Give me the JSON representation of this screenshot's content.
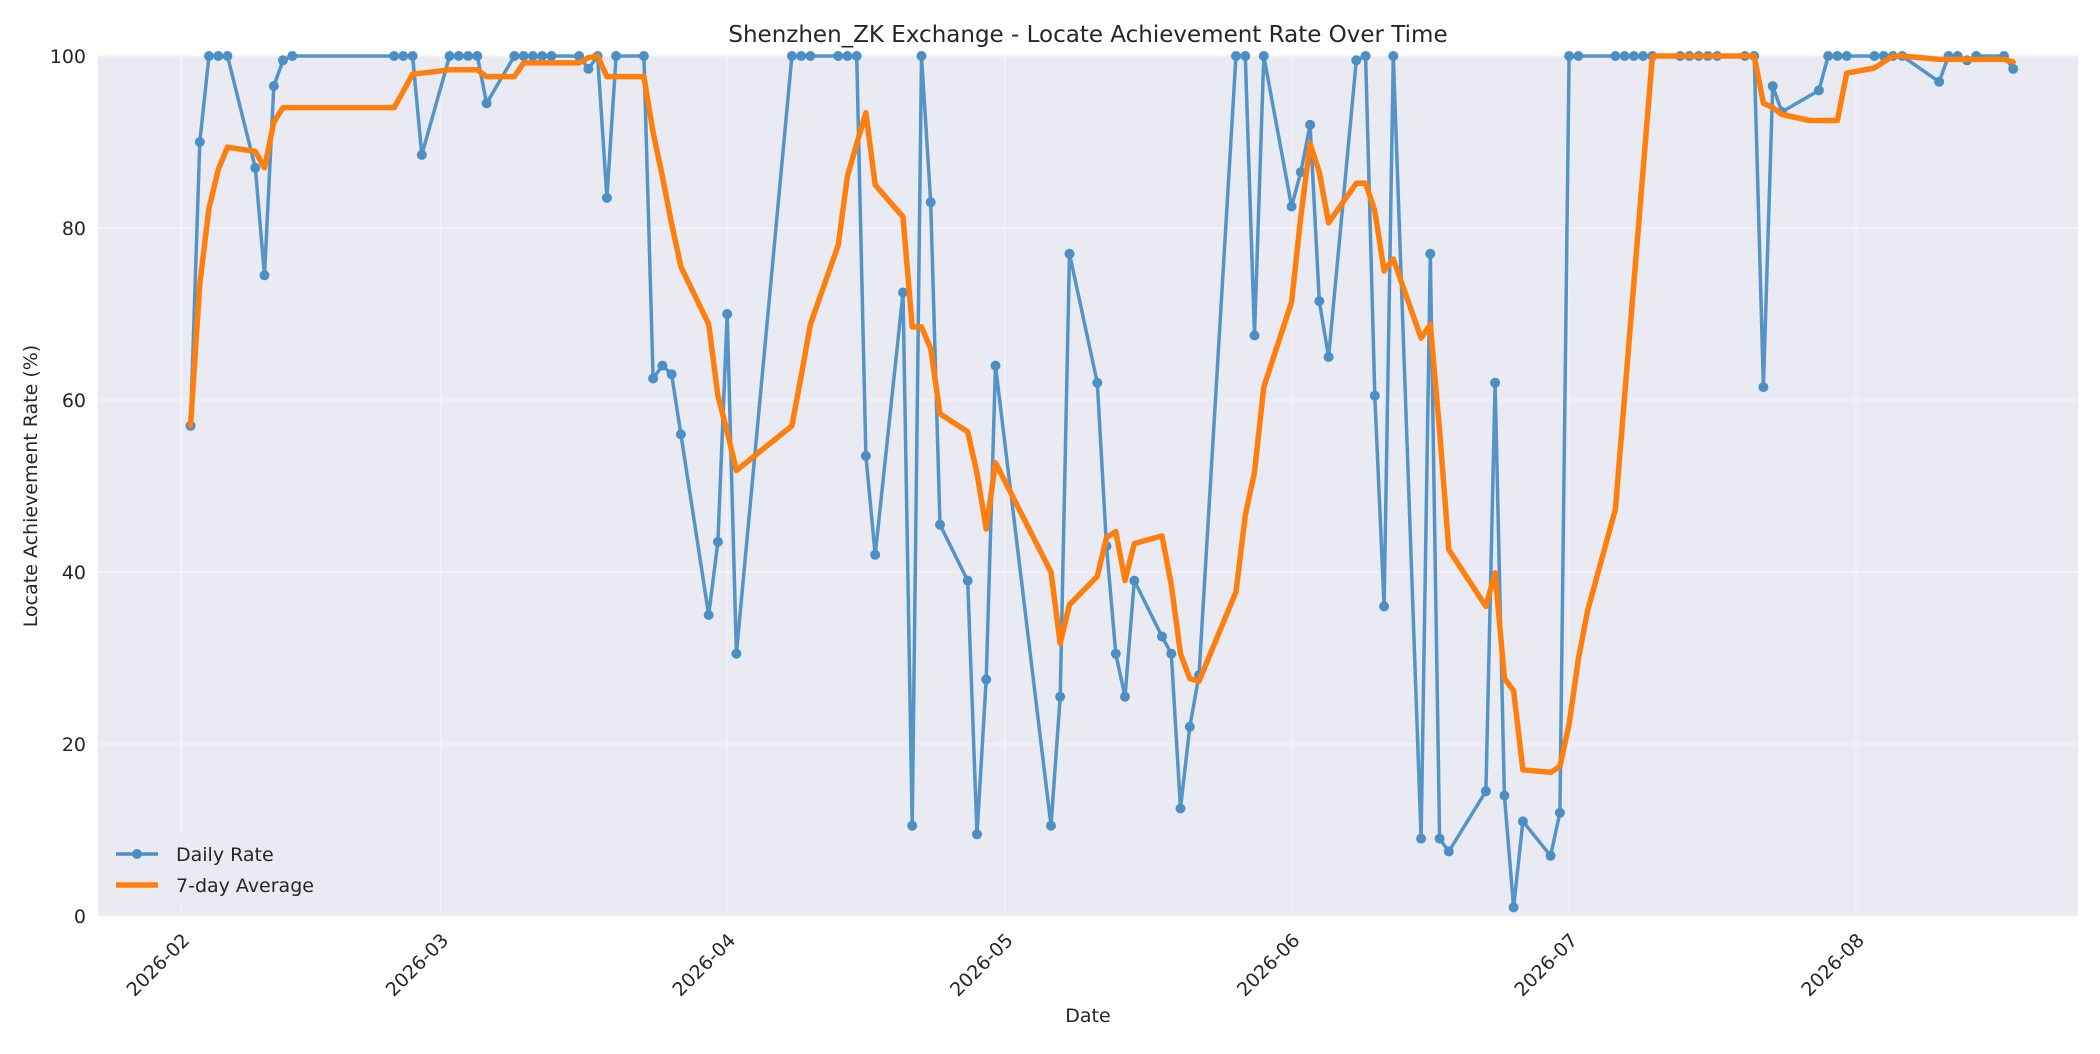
{
  "chart_data": {
    "type": "line",
    "title": "Shenzhen_ZK Exchange - Locate Achievement Rate Over Time",
    "xlabel": "Date",
    "ylabel": "Locate Achievement Rate (%)",
    "xlim": [
      "2026-01-23",
      "2026-08-25"
    ],
    "ylim": [
      0,
      100
    ],
    "x_ticks": [
      "2026-02-01",
      "2026-03-01",
      "2026-04-01",
      "2026-05-01",
      "2026-06-01",
      "2026-07-01",
      "2026-08-01"
    ],
    "x_tick_labels": [
      "2026-02",
      "2026-03",
      "2026-04",
      "2026-05",
      "2026-06",
      "2026-07",
      "2026-08"
    ],
    "y_ticks": [
      0,
      20,
      40,
      60,
      80,
      100
    ],
    "y_tick_labels": [
      "0",
      "20",
      "40",
      "60",
      "80",
      "100"
    ],
    "grid": true,
    "legend_position": "lower-left",
    "colors": {
      "plot_background": "#eaeaf2",
      "grid": "#f4f4f8",
      "daily": "#4c8fc4",
      "average": "#ff7f0e",
      "text": "#262626"
    },
    "series": [
      {
        "name": "Daily Rate",
        "marker": "circle",
        "points": [
          [
            "2026-02-02",
            57
          ],
          [
            "2026-02-03",
            90
          ],
          [
            "2026-02-04",
            100
          ],
          [
            "2026-02-05",
            100
          ],
          [
            "2026-02-06",
            100
          ],
          [
            "2026-02-09",
            87
          ],
          [
            "2026-02-10",
            74.5
          ],
          [
            "2026-02-11",
            96.5
          ],
          [
            "2026-02-12",
            99.5
          ],
          [
            "2026-02-13",
            100
          ],
          [
            "2026-02-24",
            100
          ],
          [
            "2026-02-25",
            100
          ],
          [
            "2026-02-26",
            100
          ],
          [
            "2026-02-27",
            88.5
          ],
          [
            "2026-03-02",
            100
          ],
          [
            "2026-03-03",
            100
          ],
          [
            "2026-03-04",
            100
          ],
          [
            "2026-03-05",
            100
          ],
          [
            "2026-03-06",
            94.5
          ],
          [
            "2026-03-09",
            100
          ],
          [
            "2026-03-10",
            100
          ],
          [
            "2026-03-11",
            100
          ],
          [
            "2026-03-12",
            100
          ],
          [
            "2026-03-13",
            100
          ],
          [
            "2026-03-16",
            100
          ],
          [
            "2026-03-17",
            98.5
          ],
          [
            "2026-03-18",
            100
          ],
          [
            "2026-03-19",
            83.5
          ],
          [
            "2026-03-20",
            100
          ],
          [
            "2026-03-23",
            100
          ],
          [
            "2026-03-24",
            62.5
          ],
          [
            "2026-03-25",
            64
          ],
          [
            "2026-03-26",
            63
          ],
          [
            "2026-03-27",
            56
          ],
          [
            "2026-03-30",
            35
          ],
          [
            "2026-03-31",
            43.5
          ],
          [
            "2026-04-01",
            70
          ],
          [
            "2026-04-02",
            30.5
          ],
          [
            "2026-04-08",
            100
          ],
          [
            "2026-04-09",
            100
          ],
          [
            "2026-04-10",
            100
          ],
          [
            "2026-04-13",
            100
          ],
          [
            "2026-04-14",
            100
          ],
          [
            "2026-04-15",
            100
          ],
          [
            "2026-04-16",
            53.5
          ],
          [
            "2026-04-17",
            42
          ],
          [
            "2026-04-20",
            72.5
          ],
          [
            "2026-04-21",
            10.5
          ],
          [
            "2026-04-22",
            100
          ],
          [
            "2026-04-23",
            83
          ],
          [
            "2026-04-24",
            45.5
          ],
          [
            "2026-04-27",
            39
          ],
          [
            "2026-04-28",
            9.5
          ],
          [
            "2026-04-29",
            27.5
          ],
          [
            "2026-04-30",
            64
          ],
          [
            "2026-05-06",
            10.5
          ],
          [
            "2026-05-07",
            25.5
          ],
          [
            "2026-05-08",
            77
          ],
          [
            "2026-05-11",
            62
          ],
          [
            "2026-05-12",
            43
          ],
          [
            "2026-05-13",
            30.5
          ],
          [
            "2026-05-14",
            25.5
          ],
          [
            "2026-05-15",
            39
          ],
          [
            "2026-05-18",
            32.5
          ],
          [
            "2026-05-19",
            30.5
          ],
          [
            "2026-05-20",
            12.5
          ],
          [
            "2026-05-21",
            22
          ],
          [
            "2026-05-22",
            28
          ],
          [
            "2026-05-26",
            100
          ],
          [
            "2026-05-27",
            100
          ],
          [
            "2026-05-28",
            67.5
          ],
          [
            "2026-05-29",
            100
          ],
          [
            "2026-06-01",
            82.5
          ],
          [
            "2026-06-02",
            86.5
          ],
          [
            "2026-06-03",
            92
          ],
          [
            "2026-06-04",
            71.5
          ],
          [
            "2026-06-05",
            65
          ],
          [
            "2026-06-08",
            99.5
          ],
          [
            "2026-06-09",
            100
          ],
          [
            "2026-06-10",
            60.5
          ],
          [
            "2026-06-11",
            36
          ],
          [
            "2026-06-12",
            100
          ],
          [
            "2026-06-15",
            9
          ],
          [
            "2026-06-16",
            77
          ],
          [
            "2026-06-17",
            9
          ],
          [
            "2026-06-18",
            7.5
          ],
          [
            "2026-06-22",
            14.5
          ],
          [
            "2026-06-23",
            62
          ],
          [
            "2026-06-24",
            14
          ],
          [
            "2026-06-25",
            1
          ],
          [
            "2026-06-26",
            11
          ],
          [
            "2026-06-29",
            7
          ],
          [
            "2026-06-30",
            12
          ],
          [
            "2026-07-01",
            100
          ],
          [
            "2026-07-02",
            100
          ],
          [
            "2026-07-06",
            100
          ],
          [
            "2026-07-07",
            100
          ],
          [
            "2026-07-08",
            100
          ],
          [
            "2026-07-09",
            100
          ],
          [
            "2026-07-10",
            100
          ],
          [
            "2026-07-13",
            100
          ],
          [
            "2026-07-14",
            100
          ],
          [
            "2026-07-15",
            100
          ],
          [
            "2026-07-16",
            100
          ],
          [
            "2026-07-17",
            100
          ],
          [
            "2026-07-20",
            100
          ],
          [
            "2026-07-21",
            100
          ],
          [
            "2026-07-22",
            61.5
          ],
          [
            "2026-07-23",
            96.5
          ],
          [
            "2026-07-24",
            93.5
          ],
          [
            "2026-07-28",
            96
          ],
          [
            "2026-07-29",
            100
          ],
          [
            "2026-07-30",
            100
          ],
          [
            "2026-07-31",
            100
          ],
          [
            "2026-08-03",
            100
          ],
          [
            "2026-08-04",
            100
          ],
          [
            "2026-08-05",
            100
          ],
          [
            "2026-08-06",
            100
          ],
          [
            "2026-08-10",
            97
          ],
          [
            "2026-08-11",
            100
          ],
          [
            "2026-08-12",
            100
          ],
          [
            "2026-08-13",
            99.5
          ],
          [
            "2026-08-14",
            100
          ],
          [
            "2026-08-17",
            100
          ],
          [
            "2026-08-18",
            98.5
          ]
        ]
      },
      {
        "name": "7-day Average",
        "marker": "none",
        "points": [
          [
            "2026-02-02",
            57
          ],
          [
            "2026-02-03",
            73.5
          ],
          [
            "2026-02-04",
            82.3
          ],
          [
            "2026-02-05",
            86.8
          ],
          [
            "2026-02-06",
            89.4
          ],
          [
            "2026-02-09",
            88.9
          ],
          [
            "2026-02-10",
            87
          ],
          [
            "2026-02-11",
            92.3
          ],
          [
            "2026-02-12",
            94
          ],
          [
            "2026-02-13",
            94
          ],
          [
            "2026-02-24",
            94
          ],
          [
            "2026-02-25",
            95.9
          ],
          [
            "2026-02-26",
            97.9
          ],
          [
            "2026-02-27",
            98
          ],
          [
            "2026-03-02",
            98.4
          ],
          [
            "2026-03-03",
            98.4
          ],
          [
            "2026-03-04",
            98.4
          ],
          [
            "2026-03-05",
            98.4
          ],
          [
            "2026-03-06",
            97.6
          ],
          [
            "2026-03-09",
            97.6
          ],
          [
            "2026-03-10",
            99.2
          ],
          [
            "2026-03-11",
            99.2
          ],
          [
            "2026-03-12",
            99.2
          ],
          [
            "2026-03-13",
            99.2
          ],
          [
            "2026-03-16",
            99.2
          ],
          [
            "2026-03-17",
            99.8
          ],
          [
            "2026-03-18",
            100
          ],
          [
            "2026-03-19",
            97.6
          ],
          [
            "2026-03-20",
            97.6
          ],
          [
            "2026-03-23",
            97.6
          ],
          [
            "2026-03-24",
            91.1
          ],
          [
            "2026-03-25",
            86
          ],
          [
            "2026-03-26",
            80.5
          ],
          [
            "2026-03-27",
            75.5
          ],
          [
            "2026-03-30",
            68.8
          ],
          [
            "2026-03-31",
            60.5
          ],
          [
            "2026-04-01",
            56.3
          ],
          [
            "2026-04-02",
            51.8
          ],
          [
            "2026-04-08",
            57
          ],
          [
            "2026-04-09",
            62.8
          ],
          [
            "2026-04-10",
            68.8
          ],
          [
            "2026-04-13",
            78
          ],
          [
            "2026-04-14",
            86
          ],
          [
            "2026-04-15",
            89.8
          ],
          [
            "2026-04-16",
            93.4
          ],
          [
            "2026-04-17",
            85
          ],
          [
            "2026-04-20",
            81.3
          ],
          [
            "2026-04-21",
            68.5
          ],
          [
            "2026-04-22",
            68.5
          ],
          [
            "2026-04-23",
            66
          ],
          [
            "2026-04-24",
            58.4
          ],
          [
            "2026-04-27",
            56.3
          ],
          [
            "2026-04-28",
            51.5
          ],
          [
            "2026-04-29",
            45
          ],
          [
            "2026-04-30",
            52.7
          ],
          [
            "2026-05-06",
            40
          ],
          [
            "2026-05-07",
            31.7
          ],
          [
            "2026-05-08",
            36.2
          ],
          [
            "2026-05-11",
            39.5
          ],
          [
            "2026-05-12",
            44
          ],
          [
            "2026-05-13",
            44.7
          ],
          [
            "2026-05-14",
            39
          ],
          [
            "2026-05-15",
            43.3
          ],
          [
            "2026-05-18",
            44.2
          ],
          [
            "2026-05-19",
            38.5
          ],
          [
            "2026-05-20",
            30.5
          ],
          [
            "2026-05-21",
            27.6
          ],
          [
            "2026-05-22",
            27.3
          ],
          [
            "2026-05-26",
            37.7
          ],
          [
            "2026-05-27",
            46.6
          ],
          [
            "2026-05-28",
            51.6
          ],
          [
            "2026-05-29",
            61.5
          ],
          [
            "2026-06-01",
            71.4
          ],
          [
            "2026-06-02",
            81.3
          ],
          [
            "2026-06-03",
            89.8
          ],
          [
            "2026-06-04",
            86.5
          ],
          [
            "2026-06-05",
            80.6
          ],
          [
            "2026-06-08",
            85.2
          ],
          [
            "2026-06-09",
            85.2
          ],
          [
            "2026-06-10",
            82
          ],
          [
            "2026-06-11",
            75
          ],
          [
            "2026-06-12",
            76.4
          ],
          [
            "2026-06-15",
            67.2
          ],
          [
            "2026-06-16",
            68.8
          ],
          [
            "2026-06-17",
            56.4
          ],
          [
            "2026-06-18",
            42.6
          ],
          [
            "2026-06-22",
            36
          ],
          [
            "2026-06-23",
            39.9
          ],
          [
            "2026-06-24",
            27.6
          ],
          [
            "2026-06-25",
            26.2
          ],
          [
            "2026-06-26",
            17
          ],
          [
            "2026-06-29",
            16.7
          ],
          [
            "2026-06-30",
            17.4
          ],
          [
            "2026-07-01",
            22.3
          ],
          [
            "2026-07-02",
            29.9
          ],
          [
            "2026-07-03",
            35.5
          ],
          [
            "2026-07-06",
            47.3
          ],
          [
            "2026-07-10",
            100
          ],
          [
            "2026-07-13",
            100
          ],
          [
            "2026-07-14",
            100
          ],
          [
            "2026-07-15",
            100
          ],
          [
            "2026-07-16",
            100
          ],
          [
            "2026-07-17",
            100
          ],
          [
            "2026-07-20",
            100
          ],
          [
            "2026-07-21",
            100
          ],
          [
            "2026-07-22",
            94.5
          ],
          [
            "2026-07-23",
            94
          ],
          [
            "2026-07-24",
            93.2
          ],
          [
            "2026-07-27",
            92.5
          ],
          [
            "2026-07-30",
            92.5
          ],
          [
            "2026-07-31",
            98
          ],
          [
            "2026-08-03",
            98.6
          ],
          [
            "2026-08-05",
            100
          ],
          [
            "2026-08-06",
            100
          ],
          [
            "2026-08-07",
            99.9
          ],
          [
            "2026-08-10",
            99.6
          ],
          [
            "2026-08-13",
            99.6
          ],
          [
            "2026-08-14",
            99.6
          ],
          [
            "2026-08-17",
            99.6
          ],
          [
            "2026-08-18",
            99.3
          ]
        ]
      }
    ]
  }
}
